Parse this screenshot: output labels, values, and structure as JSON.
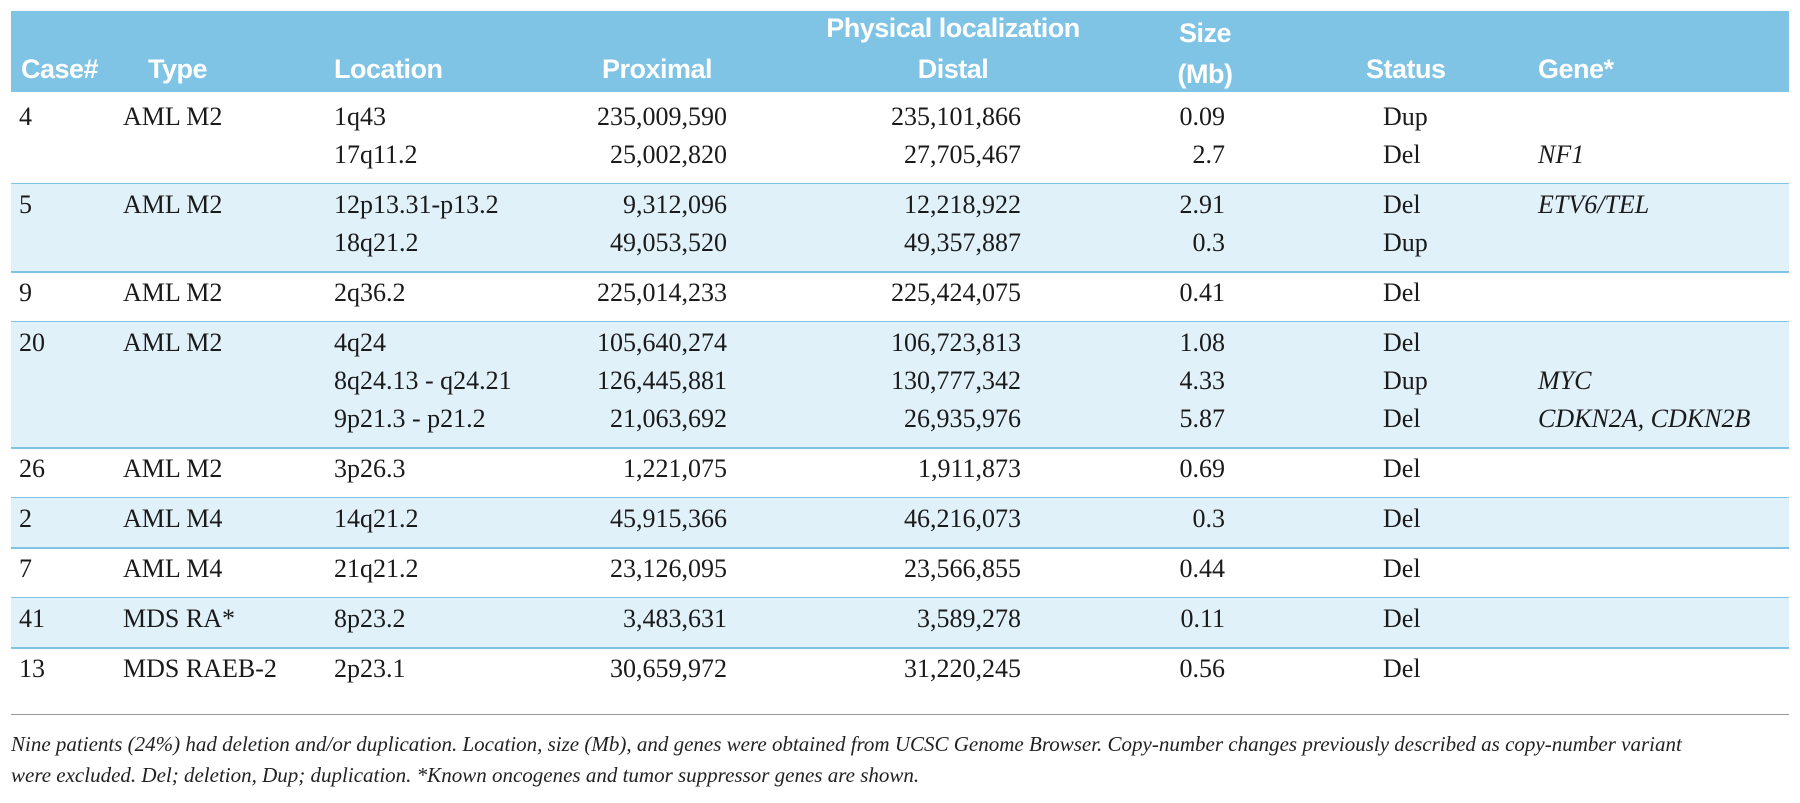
{
  "table": {
    "header": {
      "case": "Case#",
      "type": "Type",
      "location": "Location",
      "physical_localization": "Physical localization",
      "proximal": "Proximal",
      "distal": "Distal",
      "size": "Size (Mb)",
      "status": "Status",
      "gene": "Gene*"
    },
    "cases": [
      {
        "case": "4",
        "type": "AML M2",
        "rows": [
          {
            "location": "1q43",
            "proximal": "235,009,590",
            "distal": "235,101,866",
            "size": "0.09",
            "status": "Dup"
          },
          {
            "location": "17q11.2",
            "proximal": "25,002,820",
            "distal": "27,705,467",
            "size": "2.7",
            "status": "Del",
            "gene": "NF1"
          }
        ]
      },
      {
        "case": "5",
        "type": "AML M2",
        "rows": [
          {
            "location": "12p13.31-p13.2",
            "proximal": "9,312,096",
            "distal": "12,218,922",
            "size": "2.91",
            "status": "Del",
            "gene": "ETV6/TEL"
          },
          {
            "location": "18q21.2",
            "proximal": "49,053,520",
            "distal": "49,357,887",
            "size": "0.3",
            "status": "Dup"
          }
        ]
      },
      {
        "case": "9",
        "type": "AML M2",
        "rows": [
          {
            "location": "2q36.2",
            "proximal": "225,014,233",
            "distal": "225,424,075",
            "size": "0.41",
            "status": "Del"
          }
        ]
      },
      {
        "case": "20",
        "type": "AML M2",
        "rows": [
          {
            "location": "4q24",
            "proximal": "105,640,274",
            "distal": "106,723,813",
            "size": "1.08",
            "status": "Del"
          },
          {
            "location": "8q24.13 - q24.21",
            "proximal": "126,445,881",
            "distal": "130,777,342",
            "size": "4.33",
            "status": "Dup",
            "gene": "MYC"
          },
          {
            "location": "9p21.3 - p21.2",
            "proximal": "21,063,692",
            "distal": "26,935,976",
            "size": "5.87",
            "status": "Del",
            "gene": "CDKN2A, CDKN2B"
          }
        ]
      },
      {
        "case": "26",
        "type": "AML M2",
        "rows": [
          {
            "location": "3p26.3",
            "proximal": "1,221,075",
            "distal": "1,911,873",
            "size": "0.69",
            "status": "Del"
          }
        ]
      },
      {
        "case": "2",
        "type": "AML M4",
        "rows": [
          {
            "location": "14q21.2",
            "proximal": "45,915,366",
            "distal": "46,216,073",
            "size": "0.3",
            "status": "Del"
          }
        ]
      },
      {
        "case": "7",
        "type": "AML M4",
        "rows": [
          {
            "location": "21q21.2",
            "proximal": "23,126,095",
            "distal": "23,566,855",
            "size": "0.44",
            "status": "Del"
          }
        ]
      },
      {
        "case": "41",
        "type": "MDS RA*",
        "rows": [
          {
            "location": "8p23.2",
            "proximal": "3,483,631",
            "distal": "3,589,278",
            "size": "0.11",
            "status": "Del"
          }
        ]
      },
      {
        "case": "13",
        "type": "MDS RAEB-2",
        "rows": [
          {
            "location": "2p23.1",
            "proximal": "30,659,972",
            "distal": "31,220,245",
            "size": "0.56",
            "status": "Del"
          }
        ]
      }
    ],
    "footnote": "Nine patients (24%) had deletion and/or duplication. Location, size (Mb), and genes were obtained from UCSC Genome Browser. Copy-number changes previously described as copy-number variant were excluded. Del; deletion, Dup; duplication. *Known oncogenes and tumor suppressor genes are shown."
  }
}
